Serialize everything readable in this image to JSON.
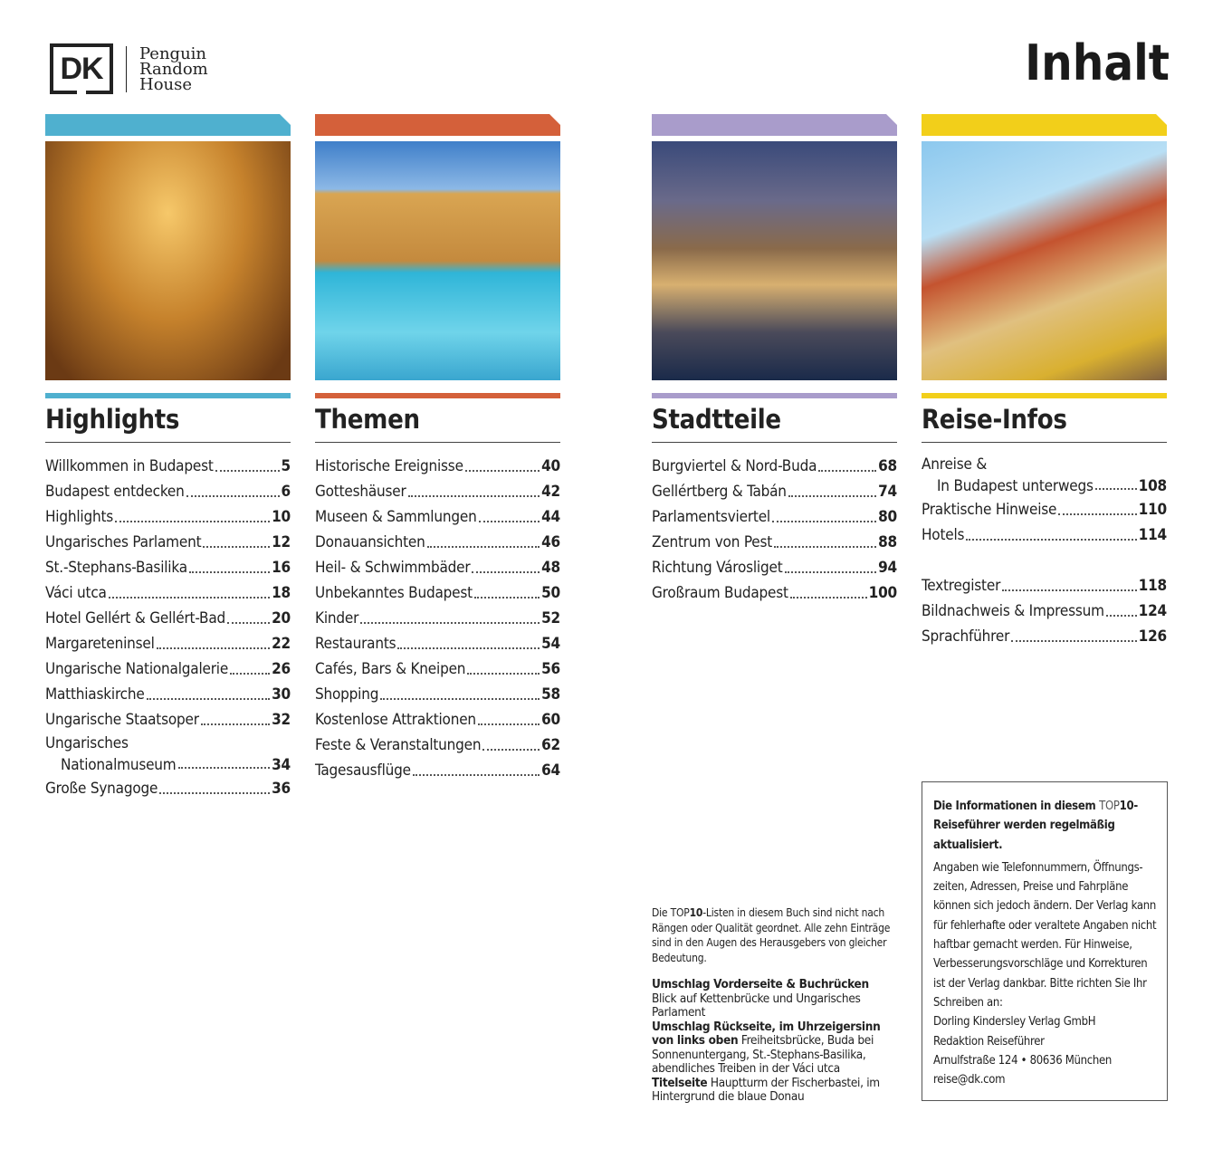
{
  "logo": {
    "dk": "DK",
    "publisher_lines": [
      "Penguin",
      "Random",
      "House"
    ]
  },
  "title": "Inhalt",
  "colors": {
    "highlights": "#4fb0cf",
    "themen": "#d4603a",
    "stadtteile": "#a99ccb",
    "reise": "#f2cf1a"
  },
  "sections": [
    {
      "heading": "Highlights",
      "image": "Parliament interior staircase",
      "entries": [
        {
          "t": "Willkommen in Budapest",
          "p": "5"
        },
        {
          "t": "Budapest entdecken",
          "p": "6"
        },
        {
          "t": "Highlights",
          "p": "10"
        },
        {
          "t": "Ungarisches Parlament",
          "p": "12"
        },
        {
          "t": "St.-Stephans-Basilika",
          "p": "16"
        },
        {
          "t": "Váci utca",
          "p": "18"
        },
        {
          "t": "Hotel Gellért & Gellért-Bad",
          "p": "20"
        },
        {
          "t": "Margareteninsel",
          "p": "22"
        },
        {
          "t": "Ungarische Nationalgalerie",
          "p": "26"
        },
        {
          "t": "Matthiaskirche",
          "p": "30"
        },
        {
          "t": "Ungarische Staatsoper",
          "p": "32"
        },
        {
          "t": "Ungarisches",
          "t2": "Nationalmuseum",
          "p": "34"
        },
        {
          "t": "Große Synagoge",
          "p": "36"
        }
      ]
    },
    {
      "heading": "Themen",
      "image": "Thermal bath pool",
      "entries": [
        {
          "t": "Historische Ereignisse",
          "p": "40"
        },
        {
          "t": "Gotteshäuser",
          "p": "42"
        },
        {
          "t": "Museen & Sammlungen",
          "p": "44"
        },
        {
          "t": "Donauansichten",
          "p": "46"
        },
        {
          "t": "Heil- & Schwimmbäder",
          "p": "48"
        },
        {
          "t": "Unbekanntes Budapest",
          "p": "50"
        },
        {
          "t": "Kinder",
          "p": "52"
        },
        {
          "t": "Restaurants",
          "p": "54"
        },
        {
          "t": "Cafés, Bars & Kneipen",
          "p": "56"
        },
        {
          "t": "Shopping",
          "p": "58"
        },
        {
          "t": "Kostenlose Attraktionen",
          "p": "60"
        },
        {
          "t": "Feste & Veranstaltungen",
          "p": "62"
        },
        {
          "t": "Tagesausflüge",
          "p": "64"
        }
      ]
    },
    {
      "heading": "Stadtteile",
      "image": "Chain bridge at dusk",
      "entries": [
        {
          "t": "Burgviertel & Nord-Buda",
          "p": "68"
        },
        {
          "t": "Gellértberg & Tabán",
          "p": "74"
        },
        {
          "t": "Parlamentsviertel",
          "p": "80"
        },
        {
          "t": "Zentrum von Pest",
          "p": "88"
        },
        {
          "t": "Richtung Városliget",
          "p": "94"
        },
        {
          "t": "Großraum Budapest",
          "p": "100"
        }
      ]
    },
    {
      "heading": "Reise-Infos",
      "image": "Colorful houses and church tower",
      "entries": [
        {
          "t": "Anreise &",
          "t2": "In Budapest unterwegs",
          "p": "108"
        },
        {
          "t": "Praktische Hinweise",
          "p": "110"
        },
        {
          "t": "Hotels",
          "p": "114"
        },
        {
          "gap": true
        },
        {
          "t": "Textregister",
          "p": "118"
        },
        {
          "t": "Bildnachweis & Impressum",
          "p": "124"
        },
        {
          "t": "Sprachführer",
          "p": "126"
        }
      ]
    }
  ],
  "note": {
    "pre": "Die ",
    "top": "TOP",
    "ten": "10",
    "post": "-Listen in diesem Buch sind nicht nach Rängen oder Qualität geordnet. Alle zehn Einträge sind in den Augen des Herausgebers von gleicher Bedeutung."
  },
  "credits": [
    {
      "b": "Umschlag Vorderseite & Buchrücken",
      "t": "Blick auf Kettenbrücke und Ungarisches Parlament",
      "br": true
    },
    {
      "b": "Umschlag Rückseite, im Uhrzeigersinn von links oben",
      "t": " Freiheitsbrücke, Buda bei Sonnenuntergang, St.-Stephans-Basilika, abendliches Treiben in der Váci utca"
    },
    {
      "b": "Titelseite",
      "t": " Hauptturm der Fischerbastei, im Hintergrund die blaue Donau"
    }
  ],
  "box": {
    "head_pre": "Die Informationen in diesem ",
    "head_top": "TOP",
    "head_post": "10-Reiseführer werden regelmäßig aktualisiert.",
    "body": "Angaben wie Telefonnummern, Öffnungs-zeiten, Adressen, Preise und Fahrpläne können sich jedoch ändern. Der Verlag kann für fehlerhafte oder veraltete Angaben nicht haftbar gemacht werden. Für Hinweise, Verbesserungsvorschläge und Korrekturen ist der Verlag dankbar. Bitte richten Sie Ihr Schreiben an:",
    "address": [
      "Dorling Kindersley Verlag GmbH",
      "Redaktion Reiseführer",
      "Arnulfstraße 124 • 80636 München",
      "reise@dk.com"
    ]
  }
}
